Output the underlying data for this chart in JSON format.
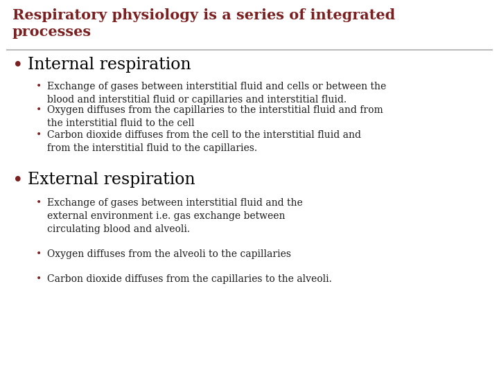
{
  "title_line1": "Respiratory physiology is a series of integrated",
  "title_line2": "processes",
  "title_color": "#7B2020",
  "bg_color": "#FFFFFF",
  "separator_color": "#BBBBBB",
  "body_text_color": "#1A1A1A",
  "bullet1_header": "Internal respiration",
  "bullet2_header": "External respiration",
  "header_color": "#000000",
  "bullet1_sub": [
    "Exchange of gases between interstitial fluid and cells or between the\nblood and interstitial fluid or capillaries and interstitial fluid.",
    "Oxygen diffuses from the capillaries to the interstitial fluid and from\nthe interstitial fluid to the cell",
    "Carbon dioxide diffuses from the cell to the interstitial fluid and\nfrom the interstitial fluid to the capillaries."
  ],
  "bullet2_sub": [
    "Exchange of gases between interstitial fluid and the\nexternal environment i.e. gas exchange between\ncirculating blood and alveoli.",
    "Oxygen diffuses from the alveoli to the capillaries",
    "Carbon dioxide diffuses from the capillaries to the alveoli."
  ],
  "title_fontsize": 15,
  "header_fontsize": 17,
  "sub_fontsize": 10,
  "main_bullet_color": "#7B2020",
  "sub_bullet_color": "#7B2020"
}
